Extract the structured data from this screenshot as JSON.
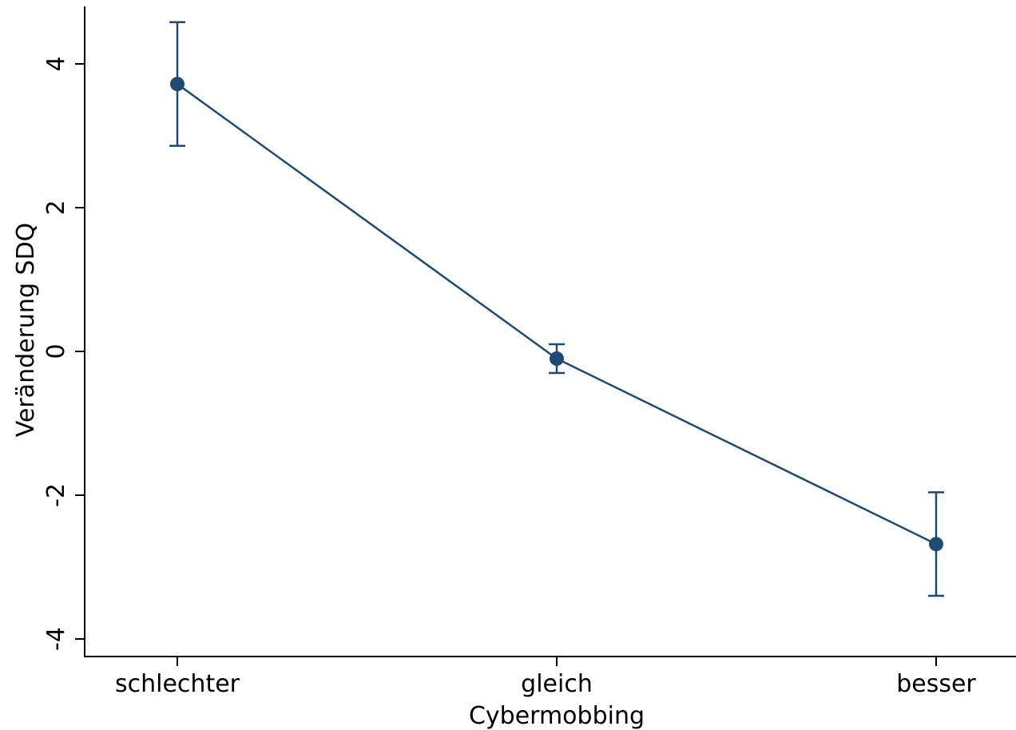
{
  "chart_data": {
    "type": "line",
    "title": "",
    "xlabel": "Cybermobbing",
    "ylabel": "Veränderung SDQ",
    "categories": [
      "schlechter",
      "gleich",
      "besser"
    ],
    "series": [
      {
        "values": [
          3.72,
          -0.1,
          -2.68
        ],
        "ci_lower": [
          2.86,
          -0.3,
          -3.4
        ],
        "ci_upper": [
          4.58,
          0.1,
          -1.96
        ]
      }
    ],
    "ylim": [
      -4.5,
      4.8
    ],
    "yticks": [
      4,
      2,
      0,
      -2,
      -4
    ],
    "ytick_labels": [
      "4",
      "2",
      "0",
      "-2",
      "-4"
    ],
    "grid": false,
    "legend": "none",
    "colors": {
      "series": "#1f4a73",
      "axis": "#000000"
    }
  }
}
